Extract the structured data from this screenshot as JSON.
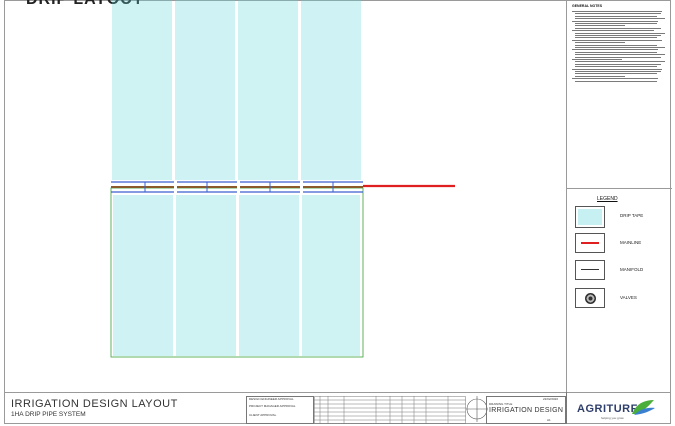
{
  "top_title": "DRIP LAYOUT",
  "notes": {
    "title": "GENERAL NOTES",
    "line_count": 30
  },
  "legend": {
    "title": "LEGEND",
    "items": [
      {
        "label": "DRIP TAPE",
        "icon": "drip-tape-symbol"
      },
      {
        "label": "MAINLINE",
        "icon": "mainline-symbol"
      },
      {
        "label": "MANIFOLD",
        "icon": "manifold-symbol"
      },
      {
        "label": "VALVES",
        "icon": "valve-symbol"
      }
    ]
  },
  "project": {
    "title": "IRRIGATION DESIGN LAYOUT",
    "subtitle": "1HA DRIP PIPE SYSTEM"
  },
  "title_block": {
    "approvals": [
      "DESIGN ENGINEER APPROVAL",
      "PROJECT MANAGER APPROVAL",
      "CLIENT APPROVAL"
    ],
    "drawing_title_label": "DRAWING TITLE",
    "drawing_title": "IRRIGATION DESIGN",
    "date": "22/02/2020",
    "scale": "A1"
  },
  "logo": {
    "brand_part1": "AGRI",
    "brand_part2": "TURF",
    "tagline": "helping you grow"
  },
  "colors": {
    "drip_tape": "#5fd3d8",
    "mainline": "#e02020",
    "manifold": "#3a5fd0",
    "pipe_brown": "#8a5a2a",
    "field_border": "#3aa03a",
    "logo_green": "#4cae3a"
  }
}
